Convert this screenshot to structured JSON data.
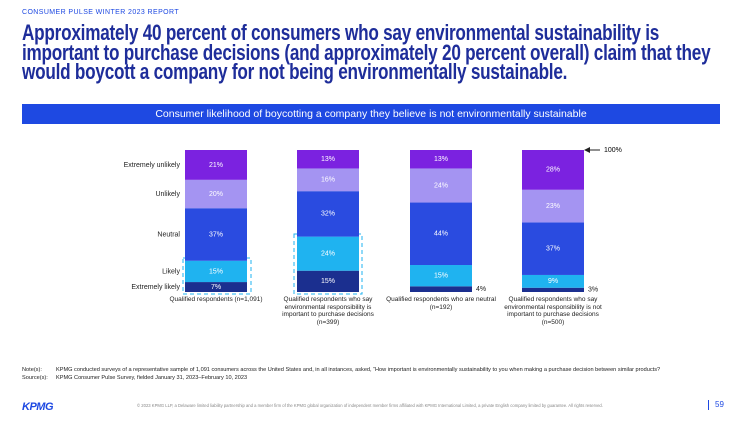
{
  "header": "CONSUMER PULSE WINTER 2023 REPORT",
  "title": "Approximately 40 percent of consumers who say environmental sustainability is important to purchase decisions (and approximately 20 percent overall) claim that they would boycott a company for not being environmentally sustainable.",
  "chart_data": {
    "type": "bar",
    "stacked": true,
    "title": "Consumer likelihood of boycotting a company they believe is not environmentally sustainable",
    "categories": [
      "Qualified respondents (n=1,091)",
      "Qualified respondents who say environmental responsibility is important to purchase decisions (n=399)",
      "Qualified respondents who are neutral (n=192)",
      "Qualified respondents who say environmental responsibility is not important to purchase decisions (n=500)"
    ],
    "series": [
      {
        "name": "Extremely likely",
        "color": "#1b2f8f",
        "values": [
          7,
          15,
          4,
          3
        ],
        "value_labels": [
          "7%",
          "15%",
          "4%",
          "3%"
        ]
      },
      {
        "name": "Likely",
        "color": "#1fb3f0",
        "values": [
          15,
          24,
          15,
          9
        ],
        "value_labels": [
          "15%",
          "24%",
          "15%",
          "9%"
        ]
      },
      {
        "name": "Neutral",
        "color": "#2a4be0",
        "values": [
          37,
          32,
          44,
          37
        ],
        "value_labels": [
          "37%",
          "32%",
          "44%",
          "37%"
        ]
      },
      {
        "name": "Unlikely",
        "color": "#a494f2",
        "values": [
          20,
          16,
          24,
          23
        ],
        "value_labels": [
          "20%",
          "16%",
          "24%",
          "23%"
        ]
      },
      {
        "name": "Extremely unlikely",
        "color": "#7b22e0",
        "values": [
          21,
          13,
          13,
          28
        ],
        "value_labels": [
          "21%",
          "13%",
          "13%",
          "28%"
        ]
      }
    ],
    "ylim": [
      0,
      100
    ],
    "annotation": "100%"
  },
  "notes": {
    "label": "Note(s):",
    "text": "KPMG conducted surveys of a representative sample of 1,091 consumers across the United States and, in all instances, asked, “How important is environmentally sustainability to you when making a purchase decision between similar products?"
  },
  "sources": {
    "label": "Source(s):",
    "text": "KPMG Consumer Pulse Survey, fielded January 31, 2023–February 10, 2023"
  },
  "footer": {
    "logo": "KPMG",
    "copyright": "© 2023 KPMG LLP, a Delaware limited liability partnership and a member firm of the KPMG global organization of independent member firms affiliated with KPMG International Limited, a private English company limited by guarantee. All rights reserved.",
    "page": "59"
  }
}
